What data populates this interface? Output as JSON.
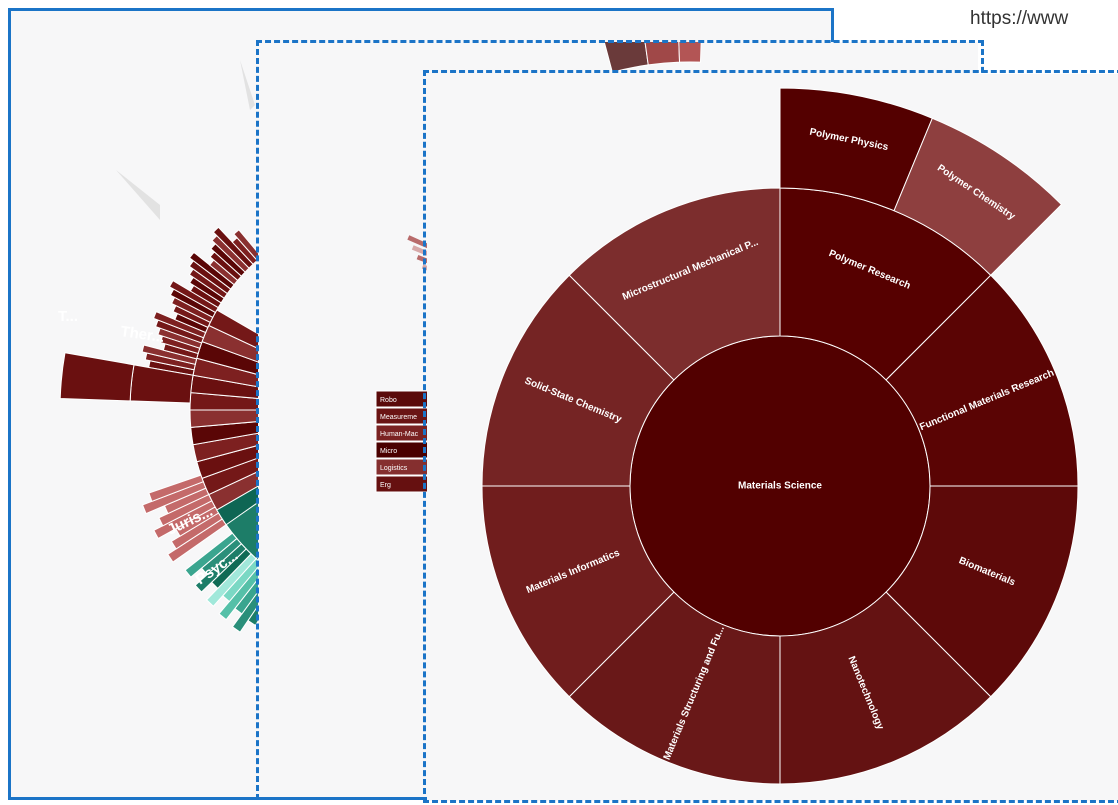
{
  "url_text": "https://www",
  "colors": {
    "frame_blue": "#1b74c7",
    "dark_red": "#4a0000",
    "mid_red": "#6e1f1f",
    "light_red": "#8e3f3f",
    "teal": "#2a7f6f"
  },
  "panel_back": {
    "labels": [
      "T...",
      "Ther...",
      "Juris...",
      "Psyc..."
    ]
  },
  "panel_middle": {
    "labels": [
      "Robo",
      "Measureme",
      "Human-Mac",
      "Micro",
      "Logistics",
      "Erg"
    ]
  },
  "chart_data": {
    "type": "sunburst",
    "root": "Materials Science",
    "children": [
      {
        "name": "Polymer Research",
        "value": 1,
        "children": [
          {
            "name": "Polymer Physics",
            "value": 0.5
          },
          {
            "name": "Polymer Chemistry",
            "value": 0.5
          }
        ]
      },
      {
        "name": "Functional Materials Research",
        "value": 1
      },
      {
        "name": "Biomaterials",
        "value": 1
      },
      {
        "name": "Nanotechnology",
        "value": 1
      },
      {
        "name": "Materials Structuring and Fu...",
        "value": 1
      },
      {
        "name": "Materials Informatics",
        "value": 1
      },
      {
        "name": "Solid-State Chemistry",
        "value": 1
      },
      {
        "name": "Microstructural Mechanical P...",
        "value": 1
      }
    ]
  }
}
